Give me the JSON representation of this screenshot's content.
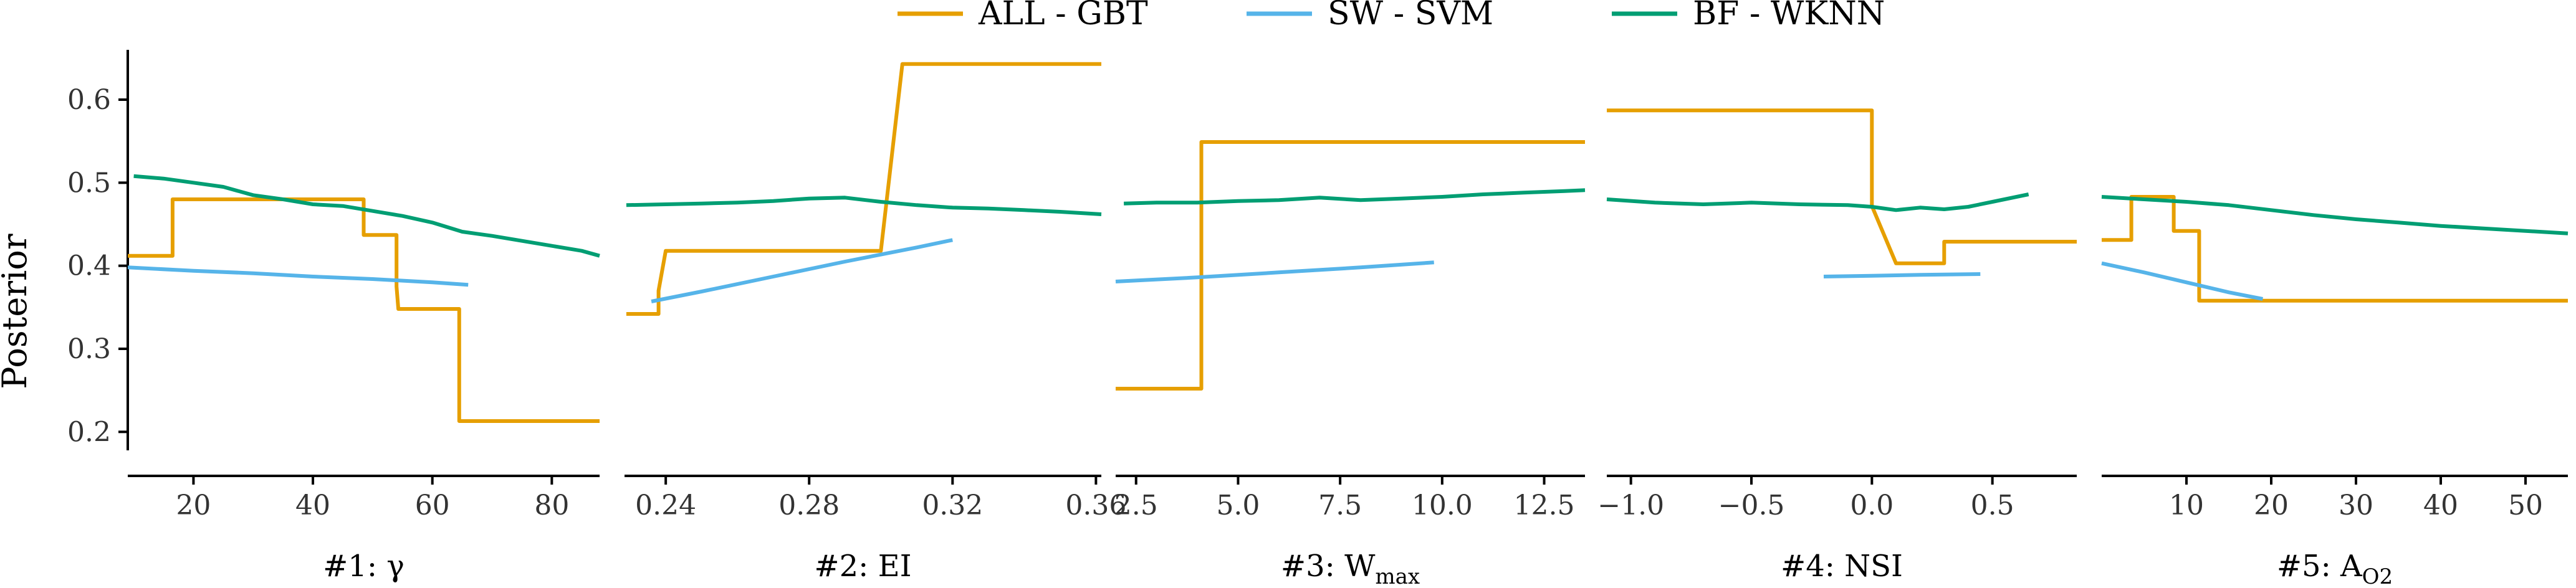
{
  "chart_data": {
    "type": "line",
    "ylabel": "Posterior",
    "ylim": [
      0.18,
      0.66
    ],
    "yticks": [
      0.2,
      0.3,
      0.4,
      0.5,
      0.6
    ],
    "ytick_labels": [
      "0.2",
      "0.3",
      "0.4",
      "0.5",
      "0.6"
    ],
    "legend": {
      "placement": "top-center",
      "entries": [
        {
          "name": "ALL - GBT",
          "color": "#E69F00"
        },
        {
          "name": "SW - SVM",
          "color": "#56B4E9"
        },
        {
          "name": "BF - WKNN",
          "color": "#009E73"
        }
      ]
    },
    "grid": false,
    "panels": [
      {
        "xlabel": "#1: γ",
        "xlabel_main": "#1: γ",
        "xlabel_sub": "",
        "xlim": [
          9,
          88
        ],
        "xticks": [
          20,
          40,
          60,
          80
        ],
        "xtick_labels": [
          "20",
          "40",
          "60",
          "80"
        ],
        "series": [
          {
            "name": "ALL - GBT",
            "x": [
              9,
              16.5,
              16.5,
              48.5,
              48.5,
              54,
              54,
              54.3,
              54.3,
              64.5,
              64.5,
              88
            ],
            "y": [
              0.412,
              0.412,
              0.48,
              0.48,
              0.437,
              0.437,
              0.375,
              0.348,
              0.348,
              0.348,
              0.213,
              0.213
            ]
          },
          {
            "name": "SW - SVM",
            "x": [
              9,
              20,
              30,
              40,
              50,
              60,
              66
            ],
            "y": [
              0.398,
              0.394,
              0.391,
              0.387,
              0.384,
              0.38,
              0.377
            ]
          },
          {
            "name": "BF - WKNN",
            "x": [
              10,
              15,
              20,
              25,
              30,
              35,
              40,
              45,
              50,
              55,
              60,
              65,
              70,
              75,
              80,
              85,
              88
            ],
            "y": [
              0.508,
              0.505,
              0.5,
              0.495,
              0.485,
              0.48,
              0.474,
              0.472,
              0.466,
              0.46,
              0.452,
              0.441,
              0.436,
              0.43,
              0.424,
              0.418,
              0.412
            ]
          }
        ]
      },
      {
        "xlabel": "#2: EI",
        "xlabel_main": "#2: EI",
        "xlabel_sub": "",
        "xlim": [
          0.2285,
          0.3615
        ],
        "xticks": [
          0.24,
          0.28,
          0.32,
          0.36
        ],
        "xtick_labels": [
          "0.24",
          "0.28",
          "0.32",
          "0.36"
        ],
        "series": [
          {
            "name": "ALL - GBT",
            "x": [
              0.229,
              0.238,
              0.238,
              0.24,
              0.3,
              0.306,
              0.3615
            ],
            "y": [
              0.342,
              0.342,
              0.37,
              0.418,
              0.418,
              0.643,
              0.643
            ]
          },
          {
            "name": "SW - SVM",
            "x": [
              0.236,
              0.25,
              0.27,
              0.29,
              0.31,
              0.32
            ],
            "y": [
              0.357,
              0.369,
              0.387,
              0.405,
              0.422,
              0.431
            ]
          },
          {
            "name": "BF - WKNN",
            "x": [
              0.229,
              0.24,
              0.25,
              0.26,
              0.27,
              0.28,
              0.29,
              0.3,
              0.31,
              0.32,
              0.33,
              0.34,
              0.35,
              0.3615
            ],
            "y": [
              0.473,
              0.474,
              0.475,
              0.476,
              0.478,
              0.481,
              0.482,
              0.477,
              0.473,
              0.47,
              0.469,
              0.467,
              0.465,
              0.462
            ]
          }
        ]
      },
      {
        "xlabel": "#3: Wmax",
        "xlabel_main": "#3: W",
        "xlabel_sub": "max",
        "xlim": [
          2.0,
          13.5
        ],
        "xticks": [
          2.5,
          5.0,
          7.5,
          10.0,
          12.5
        ],
        "xtick_labels": [
          "2.5",
          "5.0",
          "7.5",
          "10.0",
          "12.5"
        ],
        "series": [
          {
            "name": "ALL - GBT",
            "x": [
              2.0,
              4.1,
              4.1,
              13.5
            ],
            "y": [
              0.252,
              0.252,
              0.549,
              0.549
            ]
          },
          {
            "name": "SW - SVM",
            "x": [
              2.0,
              4.0,
              6.0,
              8.0,
              9.8
            ],
            "y": [
              0.381,
              0.386,
              0.392,
              0.398,
              0.404
            ]
          },
          {
            "name": "BF - WKNN",
            "x": [
              2.2,
              3.0,
              4.0,
              5.0,
              6.0,
              7.0,
              8.0,
              9.0,
              10.0,
              11.0,
              12.0,
              13.0,
              13.5
            ],
            "y": [
              0.475,
              0.476,
              0.476,
              0.478,
              0.479,
              0.482,
              0.479,
              0.481,
              0.483,
              0.486,
              0.488,
              0.49,
              0.491
            ]
          }
        ]
      },
      {
        "xlabel": "#4: NSI",
        "xlabel_main": "#4: NSI",
        "xlabel_sub": "",
        "xlim": [
          -1.1,
          0.85
        ],
        "xticks": [
          -1.0,
          -0.5,
          0.0,
          0.5
        ],
        "xtick_labels": [
          "−1.0",
          "−0.5",
          "0.0",
          "0.5"
        ],
        "series": [
          {
            "name": "ALL - GBT",
            "x": [
              -1.1,
              0.0,
              0.0,
              0.1,
              0.3,
              0.3,
              0.85
            ],
            "y": [
              0.587,
              0.587,
              0.472,
              0.403,
              0.403,
              0.429,
              0.429
            ]
          },
          {
            "name": "SW - SVM",
            "x": [
              -0.2,
              0.0,
              0.2,
              0.45
            ],
            "y": [
              0.387,
              0.388,
              0.389,
              0.39
            ]
          },
          {
            "name": "BF - WKNN",
            "x": [
              -1.1,
              -0.9,
              -0.7,
              -0.5,
              -0.3,
              -0.1,
              0.0,
              0.1,
              0.2,
              0.3,
              0.4,
              0.5,
              0.65
            ],
            "y": [
              0.48,
              0.476,
              0.474,
              0.476,
              0.474,
              0.473,
              0.471,
              0.467,
              0.47,
              0.468,
              0.471,
              0.477,
              0.486
            ]
          }
        ]
      },
      {
        "xlabel": "#5: AO2",
        "xlabel_main": "#5: A",
        "xlabel_sub": "O2",
        "xlim": [
          0,
          55
        ],
        "xticks": [
          10,
          20,
          30,
          40,
          50
        ],
        "xtick_labels": [
          "10",
          "20",
          "30",
          "40",
          "50"
        ],
        "series": [
          {
            "name": "ALL - GBT",
            "x": [
              0,
              3.5,
              3.5,
              8.5,
              8.5,
              11.5,
              11.5,
              55
            ],
            "y": [
              0.431,
              0.431,
              0.483,
              0.483,
              0.442,
              0.442,
              0.358,
              0.358
            ]
          },
          {
            "name": "SW - SVM",
            "x": [
              0,
              5,
              10,
              15,
              19
            ],
            "y": [
              0.403,
              0.392,
              0.38,
              0.368,
              0.36
            ]
          },
          {
            "name": "BF - WKNN",
            "x": [
              0,
              5,
              10,
              15,
              20,
              25,
              30,
              35,
              40,
              45,
              50,
              55
            ],
            "y": [
              0.483,
              0.48,
              0.477,
              0.473,
              0.467,
              0.461,
              0.456,
              0.452,
              0.448,
              0.445,
              0.442,
              0.439
            ]
          }
        ]
      }
    ]
  }
}
